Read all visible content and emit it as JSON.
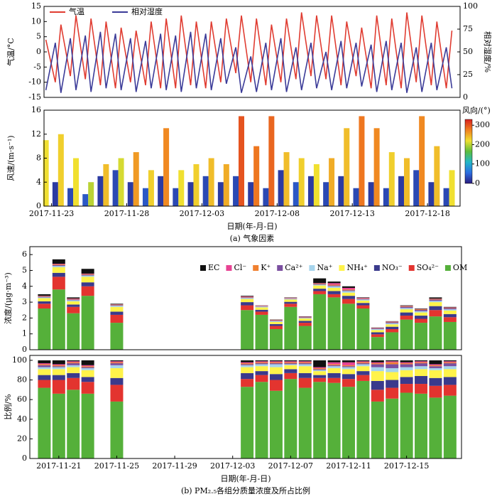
{
  "chart_data": [
    {
      "type": "line",
      "ylabel": "气温/°C",
      "y2label": "相对湿度/%",
      "xlim": [
        "2017-11-22T12:00",
        "2017-12-20T04:00"
      ],
      "ylim": [
        -15,
        15
      ],
      "yticks": [
        -15,
        -10,
        -5,
        0,
        5,
        10,
        15
      ],
      "y2lim": [
        0,
        100
      ],
      "y2ticks": [
        0,
        25,
        50,
        75,
        100
      ],
      "x": [
        "2017-11-22T15:00",
        "2017-11-23T06:00",
        "2017-11-23T15:00",
        "2017-11-24T06:00",
        "2017-11-24T15:00",
        "2017-11-25T06:00",
        "2017-11-25T15:00",
        "2017-11-26T06:00",
        "2017-11-26T15:00",
        "2017-11-27T06:00",
        "2017-11-27T15:00",
        "2017-11-28T06:00",
        "2017-11-28T15:00",
        "2017-11-29T06:00",
        "2017-11-29T15:00",
        "2017-11-30T06:00",
        "2017-11-30T15:00",
        "2017-12-01T06:00",
        "2017-12-01T15:00",
        "2017-12-02T06:00",
        "2017-12-02T15:00",
        "2017-12-03T06:00",
        "2017-12-03T15:00",
        "2017-12-04T06:00",
        "2017-12-04T15:00",
        "2017-12-05T06:00",
        "2017-12-05T15:00",
        "2017-12-06T06:00",
        "2017-12-06T15:00",
        "2017-12-07T06:00",
        "2017-12-07T15:00",
        "2017-12-08T06:00",
        "2017-12-08T15:00",
        "2017-12-09T06:00",
        "2017-12-09T15:00",
        "2017-12-10T06:00",
        "2017-12-10T15:00",
        "2017-12-11T06:00",
        "2017-12-11T15:00",
        "2017-12-12T06:00",
        "2017-12-12T15:00",
        "2017-12-13T06:00",
        "2017-12-13T15:00",
        "2017-12-14T06:00",
        "2017-12-14T15:00",
        "2017-12-15T06:00",
        "2017-12-15T15:00",
        "2017-12-16T06:00",
        "2017-12-16T15:00",
        "2017-12-17T06:00",
        "2017-12-17T15:00",
        "2017-12-18T06:00",
        "2017-12-18T15:00",
        "2017-12-19T06:00",
        "2017-12-19T15:00"
      ],
      "series": [
        {
          "name": "气温",
          "color": "#e03c31",
          "values": [
            4,
            -10,
            9,
            -8,
            12,
            -9,
            11,
            -11,
            10,
            -12,
            8,
            -10,
            7,
            -11,
            10,
            -12,
            11,
            -12,
            12,
            -11,
            10,
            -12,
            10,
            -10,
            11,
            -7,
            12,
            -10,
            11,
            -11,
            9,
            -10,
            11,
            -9,
            13,
            -8,
            12,
            -9,
            12,
            -11,
            10,
            -8,
            8,
            -12,
            12,
            -11,
            11,
            -12,
            13,
            -10,
            12,
            -11,
            10,
            -12,
            7
          ]
        },
        {
          "name": "相对湿度",
          "color": "#3b3b98",
          "axis": "y2",
          "values": [
            8,
            60,
            5,
            65,
            8,
            68,
            6,
            72,
            10,
            70,
            8,
            65,
            6,
            62,
            10,
            70,
            8,
            68,
            6,
            72,
            10,
            70,
            8,
            65,
            15,
            55,
            5,
            45,
            6,
            60,
            8,
            65,
            6,
            55,
            8,
            60,
            10,
            50,
            8,
            62,
            10,
            60,
            12,
            58,
            6,
            62,
            8,
            60,
            5,
            55,
            6,
            60,
            8,
            55,
            10
          ]
        }
      ]
    },
    {
      "type": "bar",
      "ylabel": "风速/(m·s⁻¹)",
      "xlabel": "日期(年-月-日)",
      "caption": "(a) 气象因素",
      "xlim": [
        "2017-11-22T12:00",
        "2017-12-20T04:00"
      ],
      "xticks": [
        "2017-11-23",
        "2017-11-28",
        "2017-12-03",
        "2017-12-08",
        "2017-12-13",
        "2017-12-18"
      ],
      "ylim": [
        0,
        16
      ],
      "yticks": [
        0,
        4,
        8,
        12,
        16
      ],
      "x": [
        "2017-11-22T15:00",
        "2017-11-23T06:00",
        "2017-11-23T15:00",
        "2017-11-24T06:00",
        "2017-11-24T15:00",
        "2017-11-25T06:00",
        "2017-11-25T15:00",
        "2017-11-26T06:00",
        "2017-11-26T15:00",
        "2017-11-27T06:00",
        "2017-11-27T15:00",
        "2017-11-28T06:00",
        "2017-11-28T15:00",
        "2017-11-29T06:00",
        "2017-11-29T15:00",
        "2017-11-30T06:00",
        "2017-11-30T15:00",
        "2017-12-01T06:00",
        "2017-12-01T15:00",
        "2017-12-02T06:00",
        "2017-12-02T15:00",
        "2017-12-03T06:00",
        "2017-12-03T15:00",
        "2017-12-04T06:00",
        "2017-12-04T15:00",
        "2017-12-05T06:00",
        "2017-12-05T15:00",
        "2017-12-06T06:00",
        "2017-12-06T15:00",
        "2017-12-07T06:00",
        "2017-12-07T15:00",
        "2017-12-08T06:00",
        "2017-12-08T15:00",
        "2017-12-09T06:00",
        "2017-12-09T15:00",
        "2017-12-10T06:00",
        "2017-12-10T15:00",
        "2017-12-11T06:00",
        "2017-12-11T15:00",
        "2017-12-12T06:00",
        "2017-12-12T15:00",
        "2017-12-13T06:00",
        "2017-12-13T15:00",
        "2017-12-14T06:00",
        "2017-12-14T15:00",
        "2017-12-15T06:00",
        "2017-12-15T15:00",
        "2017-12-16T06:00",
        "2017-12-16T15:00",
        "2017-12-17T06:00",
        "2017-12-17T15:00",
        "2017-12-18T06:00",
        "2017-12-18T15:00",
        "2017-12-19T06:00",
        "2017-12-19T15:00"
      ],
      "values": [
        11,
        4,
        12,
        3,
        8,
        2,
        4,
        5,
        7,
        6,
        8,
        4,
        9,
        3,
        6,
        5,
        13,
        3,
        6,
        4,
        7,
        5,
        8,
        4,
        7,
        5,
        15,
        4,
        10,
        3,
        15,
        6,
        9,
        4,
        8,
        5,
        7,
        4,
        8,
        5,
        13,
        3,
        15,
        4,
        13,
        3,
        9,
        5,
        8,
        6,
        15,
        4,
        10,
        3,
        6
      ],
      "direction": [
        220,
        20,
        230,
        30,
        220,
        40,
        200,
        20,
        240,
        30,
        210,
        20,
        260,
        40,
        230,
        20,
        270,
        30,
        220,
        20,
        230,
        30,
        240,
        20,
        250,
        30,
        300,
        20,
        280,
        30,
        290,
        20,
        240,
        40,
        230,
        20,
        220,
        30,
        250,
        20,
        240,
        30,
        280,
        20,
        270,
        30,
        230,
        20,
        240,
        30,
        270,
        20,
        240,
        30,
        220
      ],
      "colorbar": {
        "label": "风向/(°)",
        "lim": [
          0,
          330
        ],
        "ticks": [
          0,
          100,
          200,
          300
        ],
        "colormap": [
          "#2a1c7f",
          "#2c6ee0",
          "#22b8c8",
          "#5cbd3c",
          "#f0e030",
          "#f08020",
          "#d72020"
        ]
      }
    },
    {
      "type": "stacked_bar",
      "ylabel": "浓度/(μg·m⁻³)",
      "legend": "top-right",
      "xlim": [
        "2017-11-19T00:00",
        "2017-12-18T19:00"
      ],
      "ylim": [
        0,
        6.5
      ],
      "yticks": [
        0,
        1,
        2,
        3,
        4,
        5,
        6
      ],
      "x": [
        "2017-11-20",
        "2017-11-21",
        "2017-11-22",
        "2017-11-23",
        "2017-11-25",
        "2017-12-04",
        "2017-12-05",
        "2017-12-06",
        "2017-12-07",
        "2017-12-08",
        "2017-12-09",
        "2017-12-10",
        "2017-12-11",
        "2017-12-12",
        "2017-12-13",
        "2017-12-14",
        "2017-12-15",
        "2017-12-16",
        "2017-12-17",
        "2017-12-18"
      ],
      "series": [
        {
          "name": "OM",
          "color": "#55b03a",
          "values": [
            2.6,
            3.8,
            2.3,
            3.4,
            1.7,
            2.5,
            2.2,
            1.3,
            2.7,
            1.5,
            3.5,
            3.3,
            2.9,
            2.6,
            0.8,
            1.1,
            1.9,
            1.7,
            2.1,
            1.75
          ]
        },
        {
          "name": "SO₄²⁻",
          "color": "#e3342f",
          "values": [
            0.3,
            0.8,
            0.4,
            0.6,
            0.5,
            0.3,
            0.2,
            0.2,
            0.2,
            0.2,
            0.2,
            0.2,
            0.3,
            0.2,
            0.17,
            0.2,
            0.25,
            0.25,
            0.4,
            0.3
          ]
        },
        {
          "name": "NO₃⁻",
          "color": "#3a3a8c",
          "values": [
            0.15,
            0.25,
            0.15,
            0.25,
            0.2,
            0.2,
            0.12,
            0.12,
            0.12,
            0.12,
            0.15,
            0.2,
            0.2,
            0.15,
            0.13,
            0.15,
            0.2,
            0.2,
            0.25,
            0.2
          ]
        },
        {
          "name": "NH₄⁺",
          "color": "#fff34a",
          "values": [
            0.2,
            0.35,
            0.2,
            0.35,
            0.3,
            0.2,
            0.15,
            0.14,
            0.15,
            0.15,
            0.2,
            0.2,
            0.2,
            0.15,
            0.14,
            0.15,
            0.2,
            0.2,
            0.25,
            0.22
          ]
        },
        {
          "name": "Na⁺",
          "color": "#a6d4ec",
          "values": [
            0.05,
            0.08,
            0.07,
            0.08,
            0.07,
            0.06,
            0.05,
            0.05,
            0.04,
            0.04,
            0.05,
            0.1,
            0.1,
            0.07,
            0.06,
            0.07,
            0.08,
            0.08,
            0.08,
            0.08
          ]
        },
        {
          "name": "Ca²⁺",
          "color": "#7b4fa0",
          "values": [
            0.05,
            0.06,
            0.05,
            0.05,
            0.04,
            0.04,
            0.03,
            0.03,
            0.03,
            0.03,
            0.04,
            0.05,
            0.05,
            0.04,
            0.04,
            0.06,
            0.08,
            0.08,
            0.08,
            0.07
          ]
        },
        {
          "name": "K⁺",
          "color": "#f08030",
          "values": [
            0.03,
            0.04,
            0.03,
            0.04,
            0.03,
            0.03,
            0.02,
            0.02,
            0.02,
            0.02,
            0.03,
            0.05,
            0.05,
            0.03,
            0.02,
            0.03,
            0.04,
            0.04,
            0.04,
            0.03
          ]
        },
        {
          "name": "Cl⁻",
          "color": "#e84393",
          "values": [
            0.02,
            0.04,
            0.03,
            0.03,
            0.02,
            0.03,
            0.02,
            0.02,
            0.02,
            0.02,
            0.03,
            0.1,
            0.1,
            0.03,
            0.02,
            0.02,
            0.02,
            0.02,
            0.02,
            0.02
          ]
        },
        {
          "name": "EC",
          "color": "#111111",
          "values": [
            0.1,
            0.28,
            0.07,
            0.3,
            0.04,
            0.04,
            0.01,
            0.02,
            0.02,
            0.02,
            0.3,
            0.1,
            0.1,
            0.03,
            0.02,
            0.02,
            0.03,
            0.03,
            0.08,
            0.03
          ]
        }
      ]
    },
    {
      "type": "stacked_bar",
      "ylabel": "比例/%",
      "xlabel": "日期(年-月-日)",
      "caption": "(b) PM₂.₅各组分质量浓度及所占比例",
      "xlim": [
        "2017-11-19T00:00",
        "2017-12-18T19:00"
      ],
      "xticks": [
        "2017-11-21",
        "2017-11-25",
        "2017-11-29",
        "2017-12-03",
        "2017-12-07",
        "2017-12-11",
        "2017-12-15"
      ],
      "ylim": [
        0,
        105
      ],
      "yticks": [
        0,
        20,
        40,
        60,
        80,
        100
      ],
      "x": [
        "2017-11-20",
        "2017-11-21",
        "2017-11-22",
        "2017-11-23",
        "2017-11-25",
        "2017-12-04",
        "2017-12-05",
        "2017-12-06",
        "2017-12-07",
        "2017-12-08",
        "2017-12-09",
        "2017-12-10",
        "2017-12-11",
        "2017-12-12",
        "2017-12-13",
        "2017-12-14",
        "2017-12-15",
        "2017-12-16",
        "2017-12-17",
        "2017-12-18"
      ],
      "series": [
        {
          "color": "#55b03a",
          "values": [
            72,
            66,
            70,
            66,
            58,
            73,
            78,
            69,
            81,
            72,
            78,
            77,
            73,
            79,
            58,
            61,
            67,
            66,
            62,
            64
          ]
        },
        {
          "color": "#e3342f",
          "values": [
            8,
            14,
            12,
            12,
            17,
            8,
            7,
            11,
            6,
            10,
            4,
            5,
            8,
            6,
            12,
            11,
            9,
            10,
            12,
            11
          ]
        },
        {
          "color": "#3a3a8c",
          "values": [
            5,
            5,
            5,
            5,
            7,
            6,
            4,
            6,
            4,
            5,
            3,
            5,
            5,
            4,
            9,
            8,
            7,
            8,
            8,
            8
          ]
        },
        {
          "color": "#fff34a",
          "values": [
            6,
            6,
            6,
            7,
            10,
            6,
            5,
            7,
            4,
            7,
            4,
            5,
            5,
            5,
            10,
            8,
            7,
            7,
            8,
            8
          ]
        },
        {
          "color": "#a6d4ec",
          "values": [
            2,
            2,
            2,
            2,
            3,
            2,
            2,
            3,
            1,
            2,
            1,
            2,
            2,
            2,
            4,
            4,
            3,
            3,
            2,
            3
          ]
        },
        {
          "color": "#7b4fa0",
          "values": [
            2,
            1,
            2,
            1,
            2,
            1,
            1,
            1,
            1,
            1,
            1,
            1,
            1,
            1,
            3,
            4,
            3,
            3,
            2,
            3
          ]
        },
        {
          "color": "#f08030",
          "values": [
            1,
            1,
            1,
            1,
            1,
            1,
            1,
            1,
            1,
            1,
            1,
            1,
            1,
            1,
            1,
            2,
            1,
            1,
            1,
            1
          ]
        },
        {
          "color": "#e84393",
          "values": [
            1,
            1,
            1,
            1,
            1,
            1,
            1,
            1,
            1,
            1,
            1,
            2,
            3,
            1,
            1,
            1,
            1,
            1,
            1,
            1
          ]
        },
        {
          "color": "#111111",
          "values": [
            3,
            4,
            1,
            5,
            1,
            2,
            1,
            1,
            1,
            1,
            7,
            2,
            2,
            1,
            2,
            1,
            2,
            1,
            4,
            1
          ]
        }
      ]
    }
  ]
}
